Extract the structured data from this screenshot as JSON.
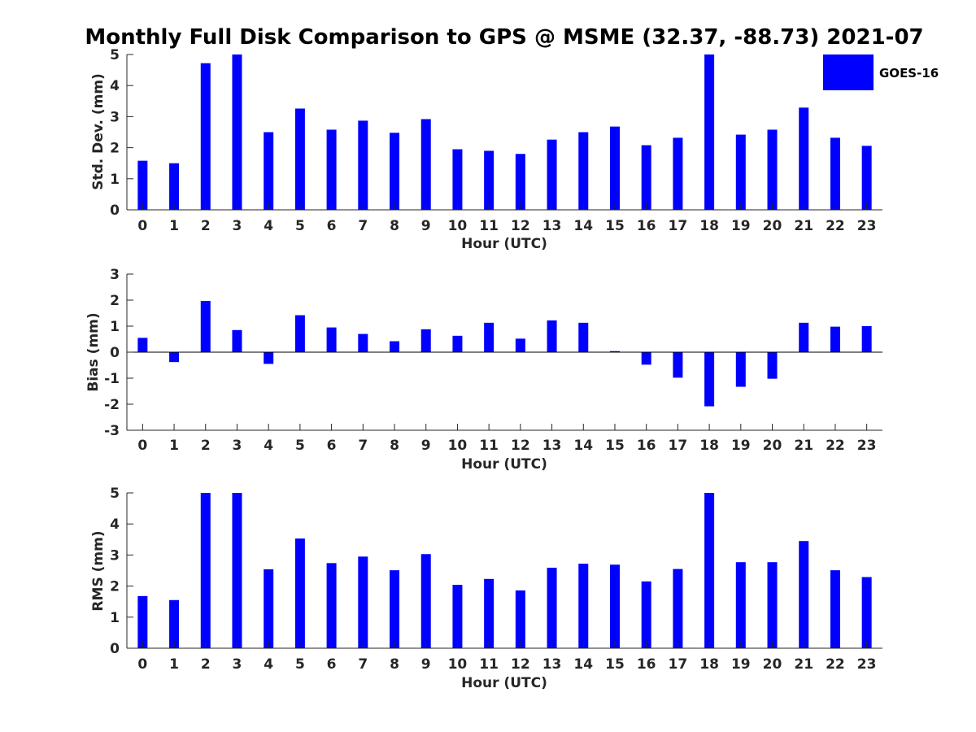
{
  "chart_data": {
    "type": "bar",
    "title": "Monthly Full Disk Comparison to GPS @ MSME (32.37, -88.73) 2021-07",
    "legend": {
      "position": "top-right",
      "entries": [
        {
          "name": "GOES-16",
          "color": "#0000ff"
        }
      ]
    },
    "colors": {
      "bar": "#0000ff",
      "axis": "#262626",
      "title": "#000000"
    },
    "panels": [
      {
        "id": "stddev",
        "type": "bar",
        "xlabel": "Hour (UTC)",
        "ylabel": "Std. Dev. (mm)",
        "ylim": [
          0,
          5
        ],
        "yticks": [
          0,
          1,
          2,
          3,
          4,
          5
        ],
        "yticklabels": [
          "0",
          "1",
          "2",
          "3",
          "4",
          "5"
        ],
        "categories": [
          "0",
          "1",
          "2",
          "3",
          "4",
          "5",
          "6",
          "7",
          "8",
          "9",
          "10",
          "11",
          "12",
          "13",
          "14",
          "15",
          "16",
          "17",
          "18",
          "19",
          "20",
          "21",
          "22",
          "23"
        ],
        "series": [
          {
            "name": "GOES-16",
            "values": [
              1.58,
              1.5,
              4.72,
              5.0,
              2.5,
              3.26,
              2.58,
              2.87,
              2.48,
              2.92,
              1.95,
              1.9,
              1.8,
              2.26,
              2.5,
              2.68,
              2.08,
              2.32,
              5.0,
              2.42,
              2.58,
              3.29,
              2.32,
              2.06
            ]
          }
        ]
      },
      {
        "id": "bias",
        "type": "bar",
        "xlabel": "Hour (UTC)",
        "ylabel": "Bias (mm)",
        "ylim": [
          -3,
          3
        ],
        "yticks": [
          -3,
          -2,
          -1,
          0,
          1,
          2,
          3
        ],
        "yticklabels": [
          "-3",
          "-2",
          "-1",
          "0",
          "1",
          "2",
          "3"
        ],
        "zero_line": true,
        "categories": [
          "0",
          "1",
          "2",
          "3",
          "4",
          "5",
          "6",
          "7",
          "8",
          "9",
          "10",
          "11",
          "12",
          "13",
          "14",
          "15",
          "16",
          "17",
          "18",
          "19",
          "20",
          "21",
          "22",
          "23"
        ],
        "series": [
          {
            "name": "GOES-16",
            "values": [
              0.55,
              -0.38,
              1.97,
              0.85,
              -0.45,
              1.42,
              0.95,
              0.7,
              0.42,
              0.88,
              0.63,
              1.13,
              0.52,
              1.22,
              1.13,
              0.04,
              -0.48,
              -0.98,
              -2.08,
              -1.33,
              -1.02,
              1.13,
              0.98,
              1.0
            ]
          }
        ]
      },
      {
        "id": "rms",
        "type": "bar",
        "xlabel": "Hour (UTC)",
        "ylabel": "RMS (mm)",
        "ylim": [
          0,
          5
        ],
        "yticks": [
          0,
          1,
          2,
          3,
          4,
          5
        ],
        "yticklabels": [
          "0",
          "1",
          "2",
          "3",
          "4",
          "5"
        ],
        "categories": [
          "0",
          "1",
          "2",
          "3",
          "4",
          "5",
          "6",
          "7",
          "8",
          "9",
          "10",
          "11",
          "12",
          "13",
          "14",
          "15",
          "16",
          "17",
          "18",
          "19",
          "20",
          "21",
          "22",
          "23"
        ],
        "series": [
          {
            "name": "GOES-16",
            "values": [
              1.68,
              1.55,
              5.0,
              5.0,
              2.54,
              3.53,
              2.74,
              2.95,
              2.51,
              3.03,
              2.04,
              2.23,
              1.86,
              2.59,
              2.72,
              2.69,
              2.15,
              2.55,
              5.0,
              2.77,
              2.77,
              3.45,
              2.51,
              2.29
            ]
          }
        ]
      }
    ]
  }
}
